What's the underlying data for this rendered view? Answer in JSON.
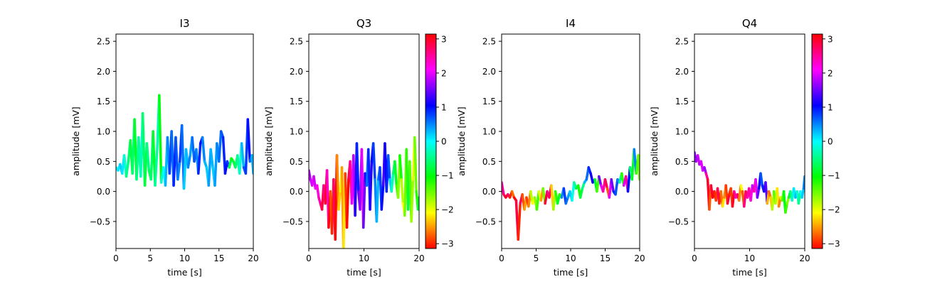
{
  "chart_data": [
    {
      "type": "line",
      "title": "I3",
      "xlabel": "time [s]",
      "ylabel": "amplitude [mV]",
      "xlim": [
        0,
        20
      ],
      "ylim": [
        -0.95,
        2.62
      ],
      "xticks": [
        "0",
        "5",
        "10",
        "15",
        "20"
      ],
      "yticks": [
        "−0.5",
        "0.0",
        "0.5",
        "1.0",
        "1.5",
        "2.0",
        "2.5"
      ],
      "colorbar": false,
      "colormap": "hsv",
      "series": [
        {
          "x": [
            0,
            0.3,
            0.6,
            0.9,
            1.2,
            1.5,
            1.8,
            2.1,
            2.4,
            2.7,
            3.0,
            3.3,
            3.6,
            3.9,
            4.2,
            4.5,
            4.8,
            5.1,
            5.4,
            5.7,
            6.0,
            6.3,
            6.6,
            6.9,
            7.2,
            7.5,
            7.8,
            8.1,
            8.4,
            8.7,
            9.0,
            9.3,
            9.6,
            9.9,
            10.2,
            10.5,
            10.8,
            11.1,
            11.4,
            11.7,
            12.0,
            12.3,
            12.6,
            12.9,
            13.2,
            13.5,
            13.8,
            14.1,
            14.4,
            14.7,
            15.0,
            15.3,
            15.6,
            15.9,
            16.2,
            16.5,
            16.8,
            17.1,
            17.4,
            17.7,
            18.0,
            18.3,
            18.6,
            18.9,
            19.2,
            19.5,
            19.8,
            20.0
          ],
          "y": [
            0.4,
            0.35,
            0.45,
            0.3,
            0.6,
            0.25,
            0.5,
            0.85,
            0.3,
            1.2,
            0.2,
            0.9,
            0.25,
            1.3,
            0.1,
            0.8,
            0.35,
            0.2,
            1.0,
            0.1,
            0.7,
            1.6,
            0.15,
            0.4,
            0.1,
            0.9,
            0.3,
            1.0,
            0.1,
            0.9,
            0.2,
            0.5,
            1.1,
            0.05,
            0.7,
            0.4,
            0.6,
            0.9,
            0.5,
            0.7,
            0.3,
            0.8,
            0.9,
            0.5,
            0.4,
            0.1,
            0.7,
            0.4,
            0.1,
            0.8,
            0.5,
            1.0,
            0.9,
            0.3,
            0.5,
            0.4,
            0.55,
            0.5,
            0.4,
            0.6,
            0.3,
            0.8,
            0.4,
            0.3,
            1.2,
            0.5,
            0.6,
            0.3
          ],
          "phase": [
            0,
            0.1,
            0.2,
            0.1,
            -0.2,
            -0.5,
            -0.6,
            -0.8,
            -0.6,
            -0.9,
            -0.5,
            -0.4,
            -0.3,
            -0.6,
            -0.8,
            -0.5,
            -0.7,
            -0.6,
            -0.9,
            -0.4,
            -0.3,
            -1.0,
            -0.2,
            0.0,
            0.3,
            0.5,
            0.8,
            0.6,
            0.9,
            0.7,
            0.5,
            0.8,
            0.6,
            0.2,
            0.3,
            0.5,
            0.4,
            0.6,
            0.7,
            0.5,
            0.9,
            1.0,
            0.5,
            0.3,
            0.2,
            0.4,
            0.3,
            0.2,
            0.4,
            0.5,
            0.6,
            0.7,
            0.9,
            1.0,
            0.8,
            -0.8,
            -1.0,
            -0.8,
            -0.6,
            -0.4,
            -0.2,
            0.3,
            0.7,
            0.8,
            1.0,
            0.6,
            0.3,
            0.2
          ]
        }
      ]
    },
    {
      "type": "line",
      "title": "Q3",
      "xlabel": "time [s]",
      "ylabel": "amplitude [mV]",
      "xlim": [
        0,
        20
      ],
      "ylim": [
        -0.95,
        2.62
      ],
      "xticks": [
        "0",
        "10",
        "20"
      ],
      "yticks": [
        "−0.5",
        "0.0",
        "0.5",
        "1.0",
        "1.5",
        "2.0",
        "2.5"
      ],
      "colorbar": true,
      "colorbar_ticks": [
        "3",
        "2",
        "1",
        "0",
        "−1",
        "−2",
        "−3"
      ],
      "colormap": "hsv",
      "series": [
        {
          "x": [
            0,
            0.3,
            0.6,
            0.9,
            1.2,
            1.5,
            1.8,
            2.1,
            2.4,
            2.7,
            3.0,
            3.3,
            3.6,
            3.9,
            4.2,
            4.5,
            4.8,
            5.1,
            5.4,
            5.7,
            6.0,
            6.3,
            6.6,
            6.9,
            7.2,
            7.5,
            7.8,
            8.1,
            8.4,
            8.7,
            9.0,
            9.3,
            9.6,
            9.9,
            10.2,
            10.5,
            10.8,
            11.1,
            11.4,
            11.7,
            12.0,
            12.3,
            12.6,
            12.9,
            13.2,
            13.5,
            13.8,
            14.1,
            14.4,
            14.7,
            15.0,
            15.3,
            15.6,
            15.9,
            16.2,
            16.5,
            16.8,
            17.1,
            17.4,
            17.7,
            18.0,
            18.3,
            18.6,
            18.9,
            19.2,
            19.5,
            19.8,
            20.0
          ],
          "y": [
            0.35,
            0.2,
            0.1,
            0.25,
            0.05,
            0.1,
            -0.1,
            -0.2,
            -0.3,
            0.1,
            -0.2,
            0.35,
            -0.6,
            0.0,
            -0.7,
            0.2,
            -0.8,
            0.6,
            -0.3,
            0.0,
            0.4,
            -0.95,
            0.3,
            -0.6,
            0.2,
            0.5,
            -0.2,
            0.6,
            -0.4,
            0.8,
            0.0,
            -0.3,
            0.7,
            -0.6,
            0.3,
            0.1,
            0.7,
            -0.3,
            0.5,
            0.8,
            0.2,
            -0.5,
            0.2,
            0.4,
            -0.3,
            0.1,
            0.8,
            0.0,
            0.6,
            0.2,
            0.0,
            0.3,
            0.5,
            0.1,
            -0.1,
            0.6,
            0.2,
            -0.2,
            -0.4,
            0.7,
            -0.3,
            0.5,
            -0.5,
            0.2,
            0.9,
            0.0,
            -0.3,
            -0.1
          ],
          "phase": [
            1.8,
            1.9,
            2.0,
            1.9,
            2.1,
            2.2,
            2.4,
            2.6,
            2.9,
            2.5,
            3.0,
            2.3,
            3.1,
            -2.8,
            -3.0,
            2.7,
            -3.1,
            -2.6,
            -2.3,
            -2.0,
            -2.5,
            -2.2,
            -2.9,
            -3.1,
            2.9,
            2.5,
            2.0,
            1.8,
            1.2,
            0.9,
            1.5,
            1.7,
            2.0,
            1.5,
            1.0,
            0.6,
            0.9,
            1.2,
            1.0,
            0.8,
            0.5,
            0.3,
            0.6,
            0.8,
            1.0,
            1.3,
            1.1,
            0.9,
            0.7,
            0.2,
            -0.3,
            -0.6,
            -0.9,
            -1.3,
            -1.6,
            -1.1,
            -1.8,
            -2.1,
            -1.5,
            -1.2,
            -0.8,
            -1.4,
            -1.7,
            -2.0,
            -1.5,
            -1.2,
            -0.9,
            -0.5
          ]
        }
      ]
    },
    {
      "type": "line",
      "title": "I4",
      "xlabel": "time [s]",
      "ylabel": "amplitude [mV]",
      "xlim": [
        0,
        20
      ],
      "ylim": [
        -0.95,
        2.62
      ],
      "xticks": [
        "0",
        "5",
        "10",
        "15",
        "20"
      ],
      "yticks": [
        "−0.5",
        "0.0",
        "0.5",
        "1.0",
        "1.5",
        "2.0",
        "2.5"
      ],
      "colorbar": false,
      "colormap": "hsv",
      "series": [
        {
          "x": [
            0,
            0.3,
            0.6,
            0.9,
            1.2,
            1.5,
            1.8,
            2.1,
            2.4,
            2.7,
            3.0,
            3.3,
            3.6,
            3.9,
            4.2,
            4.5,
            4.8,
            5.1,
            5.4,
            5.7,
            6.0,
            6.3,
            6.6,
            6.9,
            7.2,
            7.5,
            7.8,
            8.1,
            8.4,
            8.7,
            9.0,
            9.3,
            9.6,
            9.9,
            10.2,
            10.5,
            10.8,
            11.1,
            11.4,
            11.7,
            12.0,
            12.3,
            12.6,
            12.9,
            13.2,
            13.5,
            13.8,
            14.1,
            14.4,
            14.7,
            15.0,
            15.3,
            15.6,
            15.9,
            16.2,
            16.5,
            16.8,
            17.1,
            17.4,
            17.7,
            18.0,
            18.3,
            18.6,
            18.9,
            19.2,
            19.5,
            19.8,
            20.0
          ],
          "y": [
            0.15,
            -0.05,
            -0.1,
            -0.05,
            -0.1,
            0.0,
            -0.1,
            -0.15,
            -0.8,
            -0.2,
            -0.05,
            -0.3,
            -0.1,
            -0.25,
            0.0,
            -0.2,
            -0.1,
            -0.3,
            0.0,
            -0.15,
            0.05,
            -0.2,
            0.0,
            -0.1,
            0.1,
            -0.3,
            0.0,
            -0.2,
            -0.05,
            -0.1,
            0.05,
            -0.2,
            -0.1,
            0.0,
            -0.15,
            0.15,
            0.05,
            0.1,
            -0.1,
            0.05,
            0.15,
            0.2,
            0.4,
            0.3,
            0.15,
            0.2,
            0.0,
            0.25,
            0.1,
            0.0,
            0.2,
            0.05,
            -0.1,
            0.2,
            0.0,
            -0.05,
            0.2,
            0.15,
            0.3,
            0.1,
            0.25,
            0.0,
            0.4,
            0.2,
            0.7,
            0.3,
            0.6,
            0.2
          ],
          "phase": [
            2.5,
            2.8,
            3.0,
            2.7,
            -3.0,
            -2.7,
            -3.1,
            2.9,
            -3.0,
            2.8,
            -2.8,
            -2.5,
            -2.9,
            -2.6,
            -1.8,
            -2.1,
            -1.6,
            -1.3,
            -2.0,
            -2.5,
            -1.5,
            2.9,
            2.6,
            2.8,
            -2.3,
            -1.7,
            -1.2,
            -0.9,
            -1.2,
            0.5,
            0.8,
            0.6,
            0.4,
            0.2,
            -0.1,
            -0.4,
            -0.8,
            -1.1,
            -0.8,
            -0.5,
            0.3,
            0.6,
            0.9,
            1.1,
            1.0,
            -0.9,
            -1.3,
            1.5,
            2.0,
            2.5,
            2.8,
            -2.8,
            2.0,
            1.5,
            0.9,
            0.7,
            0.5,
            -0.5,
            -1.2,
            2.0,
            2.5,
            1.0,
            -0.6,
            -0.9,
            0.5,
            -1.3,
            -1.5,
            -2.5
          ]
        }
      ]
    },
    {
      "type": "line",
      "title": "Q4",
      "xlabel": "time [s]",
      "ylabel": "amplitude [mV]",
      "xlim": [
        0,
        20
      ],
      "ylim": [
        -0.95,
        2.62
      ],
      "xticks": [
        "0",
        "10",
        "20"
      ],
      "yticks": [
        "−0.5",
        "0.0",
        "0.5",
        "1.0",
        "1.5",
        "2.0",
        "2.5"
      ],
      "colorbar": true,
      "colorbar_ticks": [
        "3",
        "2",
        "1",
        "0",
        "−1",
        "−2",
        "−3"
      ],
      "colormap": "hsv",
      "series": [
        {
          "x": [
            0,
            0.3,
            0.6,
            0.9,
            1.2,
            1.5,
            1.8,
            2.1,
            2.4,
            2.7,
            3.0,
            3.3,
            3.6,
            3.9,
            4.2,
            4.5,
            4.8,
            5.1,
            5.4,
            5.7,
            6.0,
            6.3,
            6.6,
            6.9,
            7.2,
            7.5,
            7.8,
            8.1,
            8.4,
            8.7,
            9.0,
            9.3,
            9.6,
            9.9,
            10.2,
            10.5,
            10.8,
            11.1,
            11.4,
            11.7,
            12.0,
            12.3,
            12.6,
            12.9,
            13.2,
            13.5,
            13.8,
            14.1,
            14.4,
            14.7,
            15.0,
            15.3,
            15.6,
            15.9,
            16.2,
            16.5,
            16.8,
            17.1,
            17.4,
            17.7,
            18.0,
            18.3,
            18.6,
            18.9,
            19.2,
            19.5,
            19.8,
            20.0
          ],
          "y": [
            0.65,
            0.5,
            0.6,
            0.45,
            0.5,
            0.35,
            0.4,
            0.3,
            0.2,
            -0.3,
            0.1,
            -0.1,
            0.0,
            -0.15,
            0.05,
            -0.2,
            0.0,
            -0.25,
            -0.1,
            0.1,
            -0.2,
            -0.05,
            0.05,
            -0.25,
            0.0,
            -0.1,
            -0.05,
            -0.15,
            0.1,
            0.0,
            -0.25,
            0.0,
            -0.1,
            0.05,
            -0.15,
            0.1,
            0.0,
            0.2,
            -0.1,
            0.05,
            0.3,
            0.1,
            0.0,
            0.15,
            -0.2,
            0.0,
            -0.1,
            -0.3,
            0.0,
            -0.2,
            0.05,
            -0.25,
            -0.1,
            -0.15,
            0.0,
            -0.35,
            -0.2,
            -0.1,
            0.0,
            -0.15,
            0.05,
            -0.1,
            0.0,
            -0.2,
            0.0,
            -0.1,
            0.05,
            0.25
          ],
          "phase": [
            1.6,
            1.7,
            1.9,
            1.8,
            2.0,
            1.9,
            1.7,
            2.5,
            3.0,
            -2.8,
            2.9,
            3.1,
            -3.0,
            -2.9,
            2.8,
            -3.0,
            -2.7,
            -2.2,
            -2.6,
            -2.9,
            2.9,
            -3.0,
            -2.9,
            3.0,
            2.5,
            2.3,
            2.8,
            -2.6,
            -2.1,
            -2.8,
            2.6,
            2.8,
            2.4,
            2.5,
            2.2,
            1.8,
            2.4,
            2.0,
            1.5,
            1.0,
            0.7,
            0.9,
            1.2,
            1.4,
            -2.4,
            -2.7,
            -2.3,
            -1.8,
            -1.4,
            -1.8,
            -2.2,
            -2.6,
            -1.9,
            -1.4,
            -1.0,
            -1.3,
            -1.6,
            -0.9,
            -0.5,
            -0.2,
            0.1,
            0.3,
            -0.2,
            -0.5,
            0.0,
            0.2,
            0.5,
            1.1
          ]
        }
      ]
    }
  ]
}
